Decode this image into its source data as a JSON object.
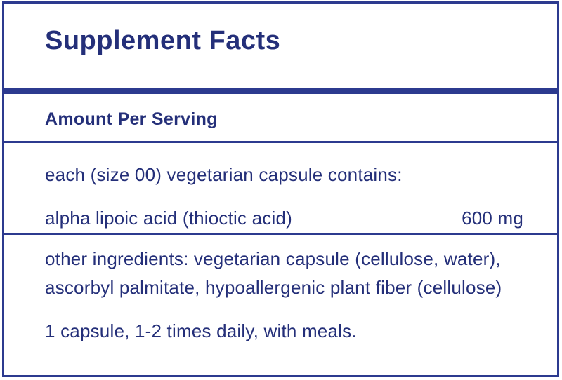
{
  "label": {
    "title": "Supplement Facts",
    "amount_per_serving": "Amount Per Serving",
    "contains_line": "each (size 00) vegetarian capsule contains:",
    "ingredient": {
      "name": "alpha lipoic acid (thioctic acid)",
      "amount": "600 mg"
    },
    "other_ingredients_lines": [
      "other ingredients: vegetarian capsule (cellulose, water),",
      "ascorbyl palmitate, hypoallergenic plant fiber (cellulose)"
    ],
    "directions": "1 capsule, 1-2 times daily, with meals.",
    "colors": {
      "text_navy": "#242f79",
      "accent_navy": "#2c3a8f",
      "background": "#ffffff"
    }
  }
}
